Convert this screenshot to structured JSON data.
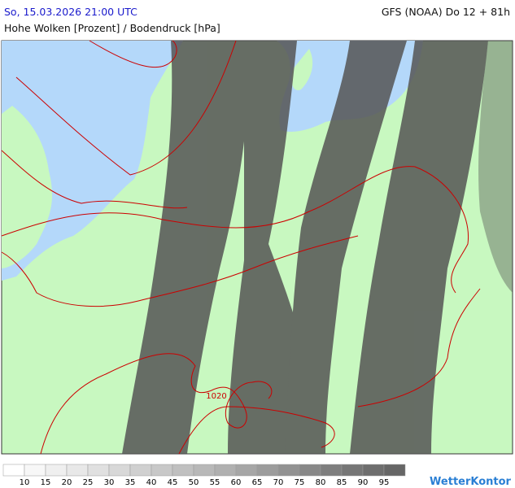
{
  "header": {
    "datetime": "So, 15.03.2026 21:00 UTC",
    "model": "GFS (NOAA) Do 12 + 81h",
    "subtitle": "Hohe Wolken [Prozent] / Bodendruck [hPa]"
  },
  "map": {
    "isobar_labels": [
      "1020"
    ]
  },
  "legend": {
    "levels": [
      10,
      15,
      20,
      25,
      30,
      35,
      40,
      45,
      50,
      55,
      60,
      65,
      70,
      75,
      80,
      85,
      90,
      95
    ],
    "colors": [
      "#ffffff",
      "#f7f7f7",
      "#efefef",
      "#e8e8e8",
      "#e0e0e0",
      "#d8d8d8",
      "#d0d0d0",
      "#c8c8c8",
      "#c0c0c0",
      "#b8b8b8",
      "#b0b0b0",
      "#a6a6a6",
      "#9c9c9c",
      "#929292",
      "#888888",
      "#7e7e7e",
      "#767676",
      "#6e6e6e",
      "#666666"
    ]
  },
  "logo": "WetterKontor"
}
